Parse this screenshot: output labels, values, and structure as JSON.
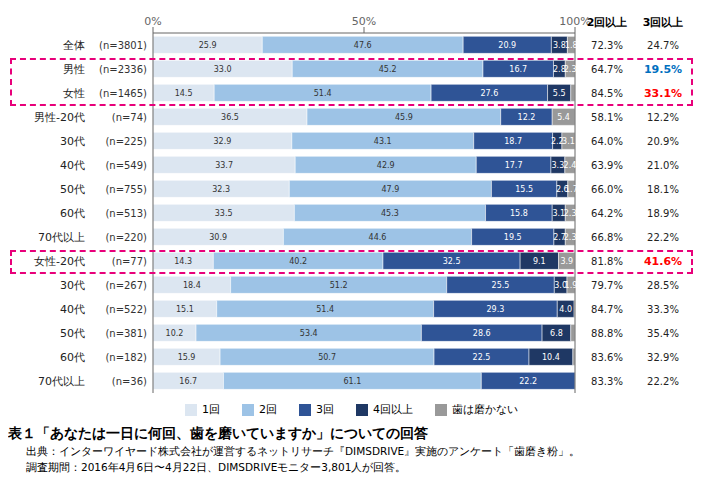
{
  "chart_data": {
    "type": "bar",
    "orientation": "horizontal",
    "stacked": true,
    "data_labels": true,
    "grid": false,
    "legend": "bottom",
    "title": "表１「あなたは一日に何回、歯を磨いていますか」についての回答",
    "annotations": [
      "出典：インターワイヤード株式会社が運営するネットリサーチ『DIMSDRIVE』実施のアンケート「歯磨き粉」。",
      "調査期間：2016年4月6日〜4月22日、DIMSDRIVEモニター3,801人が回答。"
    ],
    "categories": [
      "全体",
      "男性",
      "女性",
      "男性-20代",
      "30代",
      "40代",
      "50代",
      "60代",
      "70代以上",
      "女性-20代",
      "30代",
      "40代",
      "50代",
      "60代",
      "70代以上"
    ],
    "category_notes": [
      "(n=3801)",
      "(n=2336)",
      "(n=1465)",
      "(n=74)",
      "(n=225)",
      "(n=549)",
      "(n=755)",
      "(n=513)",
      "(n=220)",
      "(n=77)",
      "(n=267)",
      "(n=522)",
      "(n=381)",
      "(n=182)",
      "(n=36)"
    ],
    "series": [
      {
        "name": "1回",
        "color": "#dce6f1",
        "values": [
          25.9,
          33.0,
          14.5,
          36.5,
          32.9,
          33.7,
          32.3,
          33.5,
          30.9,
          14.3,
          18.4,
          15.1,
          10.2,
          15.9,
          16.7
        ],
        "value_labels": [
          "25.9",
          "33.0",
          "14.5",
          "36.5",
          "32.9",
          "33.7",
          "32.3",
          "33.5",
          "30.9",
          "14.3",
          "18.4",
          "15.1",
          "10.2",
          "15.9",
          "16.7"
        ]
      },
      {
        "name": "2回",
        "color": "#9dc3e6",
        "values": [
          47.6,
          45.2,
          51.4,
          45.9,
          43.1,
          42.9,
          47.9,
          45.3,
          44.6,
          40.2,
          51.2,
          51.4,
          53.4,
          50.7,
          61.1
        ],
        "value_labels": [
          "47.6",
          "45.2",
          "51.4",
          "45.9",
          "43.1",
          "42.9",
          "47.9",
          "45.3",
          "44.6",
          "40.2",
          "51.2",
          "51.4",
          "53.4",
          "50.7",
          "61.1"
        ]
      },
      {
        "name": "3回",
        "color": "#2f5496",
        "values": [
          20.9,
          16.7,
          27.6,
          12.2,
          18.7,
          17.7,
          15.5,
          15.8,
          19.5,
          32.5,
          25.5,
          29.3,
          28.6,
          22.5,
          22.2
        ],
        "value_labels": [
          "20.9",
          "16.7",
          "27.6",
          "12.2",
          "18.7",
          "17.7",
          "15.5",
          "15.8",
          "19.5",
          "32.5",
          "25.5",
          "29.3",
          "28.6",
          "22.5",
          "22.2"
        ]
      },
      {
        "name": "4回以上",
        "color": "#1f3864",
        "values": [
          3.8,
          2.8,
          5.5,
          0.0,
          2.2,
          3.3,
          2.6,
          3.1,
          2.7,
          9.1,
          3.0,
          4.0,
          6.8,
          10.4,
          0.0
        ],
        "value_labels": [
          "3.8",
          "2.8",
          "5.5",
          null,
          "2.2",
          "3.3",
          "2.6",
          "3.1",
          "2.7",
          "9.1",
          "3.0",
          "4.0",
          "6.8",
          "10.4",
          null
        ]
      },
      {
        "name": "歯は磨かない",
        "color": "#999999",
        "values": [
          1.8,
          2.3,
          1.0,
          5.4,
          3.1,
          2.4,
          1.7,
          2.3,
          2.3,
          3.9,
          1.9,
          0.2,
          1.0,
          0.5,
          0.0
        ],
        "value_labels": [
          "1.8",
          "2.3",
          null,
          "5.4",
          "3.1",
          "2.4",
          "1.7",
          "2.3",
          "2.3",
          "3.9",
          "1.9",
          null,
          null,
          null,
          null
        ]
      }
    ],
    "xlim": [
      0,
      100
    ],
    "xticks": [
      {
        "value": 0,
        "label": "0%"
      },
      {
        "value": 50,
        "label": "50%"
      },
      {
        "value": 100,
        "label": "100%"
      }
    ],
    "table": {
      "columns": [
        {
          "header": "2回以上",
          "values": [
            72.3,
            64.7,
            84.5,
            58.1,
            64.0,
            63.9,
            66.0,
            64.2,
            66.8,
            81.8,
            79.7,
            84.7,
            88.8,
            83.6,
            83.3
          ],
          "value_labels": [
            "72.3%",
            "64.7%",
            "84.5%",
            "58.1%",
            "64.0%",
            "63.9%",
            "66.0%",
            "64.2%",
            "66.8%",
            "81.8%",
            "79.7%",
            "84.7%",
            "88.8%",
            "83.6%",
            "83.3%"
          ]
        },
        {
          "header": "3回以上",
          "values": [
            24.7,
            19.5,
            33.1,
            12.2,
            20.9,
            21.0,
            18.1,
            18.9,
            22.2,
            41.6,
            28.5,
            33.3,
            35.4,
            32.9,
            22.2
          ],
          "value_labels": [
            "24.7%",
            "19.5%",
            "33.1%",
            "12.2%",
            "20.9%",
            "21.0%",
            "18.1%",
            "18.9%",
            "22.2%",
            "41.6%",
            "28.5%",
            "33.3%",
            "35.4%",
            "32.9%",
            "22.2%"
          ],
          "colors": [
            null,
            "#0070c0",
            "#ff0000",
            null,
            null,
            null,
            null,
            null,
            null,
            "#ff0000",
            null,
            null,
            null,
            null,
            null
          ]
        }
      ]
    },
    "boxes": [
      {
        "rows": [
          1,
          2
        ],
        "color": "#e8007a"
      },
      {
        "rows": [
          9
        ],
        "color": "#e8007a"
      }
    ]
  }
}
